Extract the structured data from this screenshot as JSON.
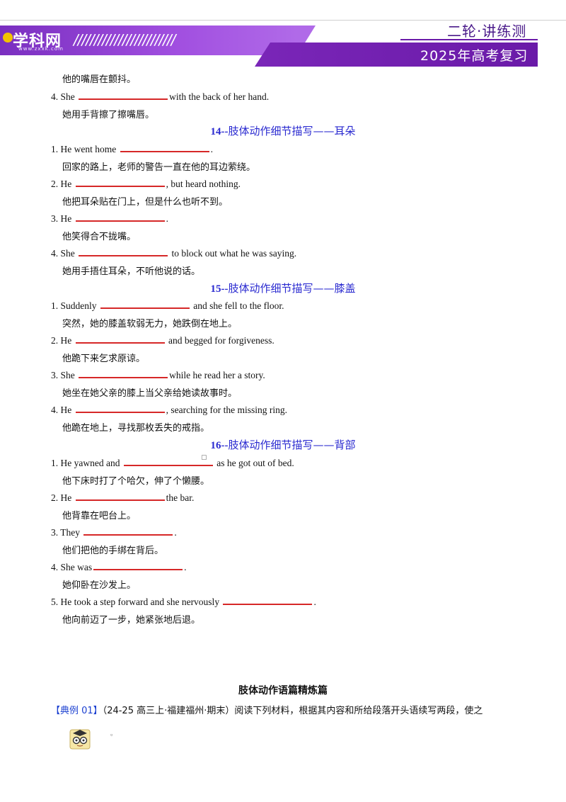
{
  "header": {
    "brand": "学科网",
    "url": "www.zxxk.com",
    "round_label": "二轮·讲练测",
    "year_label": "2025年高考复习",
    "accent_color": "#7a26b8"
  },
  "top_fragment": "他的嘴唇在颤抖。",
  "top_item": {
    "pre": "4. She",
    "post": "with the back of her hand.",
    "cn": "她用手背擦了擦嘴唇。"
  },
  "sections": [
    {
      "num": "14--",
      "title": "肢体动作细节描写——耳朵",
      "items": [
        {
          "pre": "1. He went home",
          "post": ".",
          "cn": "回家的路上，老师的警告一直在他的耳边萦绕。"
        },
        {
          "pre": "2. He",
          "post": ", but heard nothing.",
          "cn": "他把耳朵贴在门上，但是什么也听不到。"
        },
        {
          "pre": "3. He",
          "post": ".",
          "cn": "他笑得合不拢嘴。"
        },
        {
          "pre": "4. She",
          "post": "to block out what he was saying.",
          "cn": "她用手捂住耳朵，不听他说的话。"
        }
      ]
    },
    {
      "num": "15--",
      "title": "肢体动作细节描写——膝盖",
      "items": [
        {
          "pre": "1. Suddenly",
          "post": "and she fell to the floor.",
          "cn": "突然，她的膝盖软弱无力，她跌倒在地上。"
        },
        {
          "pre": "2. He",
          "post": "and begged for forgiveness.",
          "cn": "他跪下来乞求原谅。"
        },
        {
          "pre": "3. She",
          "post": "while he read her a story.",
          "cn": "她坐在她父亲的膝上当父亲给她读故事时。"
        },
        {
          "pre": "4. He",
          "post": ", searching for the missing ring.",
          "cn": "他跪在地上，寻找那枚丢失的戒指。"
        }
      ]
    },
    {
      "num": "16--",
      "title": "肢体动作细节描写——背部",
      "items": [
        {
          "pre": "1. He yawned and",
          "post": "as he got out of bed.",
          "cn": "他下床时打了个哈欠，伸了个懒腰。"
        },
        {
          "pre": "2. He",
          "post": "the bar.",
          "cn": "他背靠在吧台上。"
        },
        {
          "pre": "3. They",
          "post": ".",
          "cn": "他们把他的手绑在背后。"
        },
        {
          "pre": "4. She was",
          "post": ".",
          "cn": "她仰卧在沙发上。"
        },
        {
          "pre": "5. He took a step forward and she nervously",
          "post": ".",
          "cn": "他向前迈了一步，她紧张地后退。"
        }
      ]
    }
  ],
  "chapter_title": "肢体动作语篇精炼篇",
  "example": {
    "tag": "【典例 01】",
    "text": "（24-25 高三上·福建福州·期末）阅读下列材料，根据其内容和所给段落开头语续写两段，使之"
  }
}
